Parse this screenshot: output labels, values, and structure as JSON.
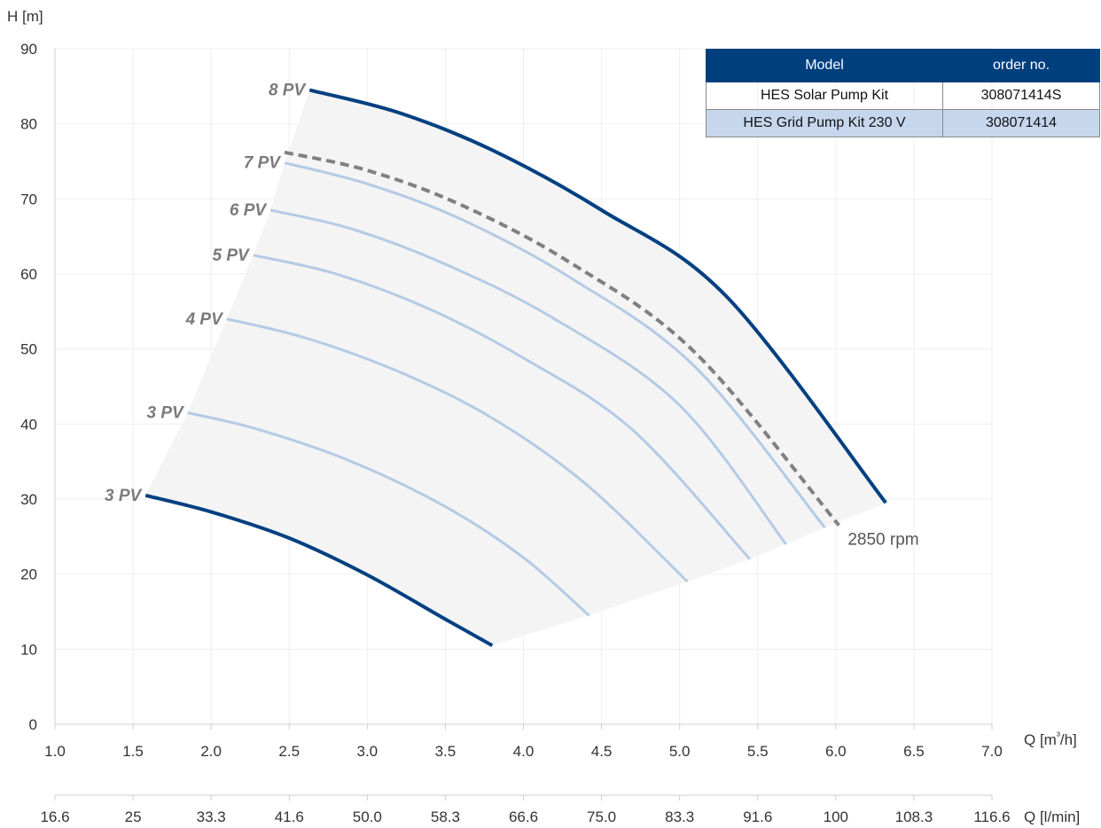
{
  "chart_data": {
    "type": "line",
    "title": "",
    "ylabel": "H [m]",
    "xlabel": "Q [m³/h]",
    "xlabel_secondary": "Q [l/min]",
    "xlim": [
      1.0,
      7.0
    ],
    "ylim": [
      0,
      90
    ],
    "x_ticks": [
      "1.0",
      "1.5",
      "2.0",
      "2.5",
      "3.0",
      "3.5",
      "4.0",
      "4.5",
      "5.0",
      "5.5",
      "6.0",
      "6.5",
      "7.0"
    ],
    "y_ticks": [
      "0",
      "10",
      "20",
      "30",
      "40",
      "50",
      "60",
      "70",
      "80",
      "90"
    ],
    "x_secondary_ticks": [
      "16.6",
      "25",
      "33.3",
      "41.6",
      "50.0",
      "58.3",
      "66.6",
      "75.0",
      "83.3",
      "91.6",
      "100",
      "108.3",
      "116.6"
    ],
    "grid": true,
    "colors": {
      "boundary": "#004080",
      "intermediate": "#b4cbe5",
      "rated": "#808080",
      "area": "#f4f4f4"
    },
    "annotation": "2850 rpm",
    "series": [
      {
        "name": "3 PV",
        "style": "boundary",
        "x": [
          1.58,
          2.0,
          2.5,
          3.0,
          3.5,
          3.8
        ],
        "y": [
          30.5,
          28.3,
          24.8,
          19.9,
          14.0,
          10.5
        ]
      },
      {
        "name": "3 PV",
        "style": "intermediate",
        "x": [
          1.85,
          2.3,
          2.9,
          3.5,
          4.0,
          4.42
        ],
        "y": [
          41.5,
          39.3,
          35.0,
          29.0,
          22.2,
          14.5
        ]
      },
      {
        "name": "4 PV",
        "style": "intermediate",
        "x": [
          2.1,
          2.6,
          3.2,
          3.8,
          4.4,
          5.05
        ],
        "y": [
          54.0,
          51.5,
          47.0,
          40.8,
          32.0,
          19.0
        ]
      },
      {
        "name": "5 PV",
        "style": "intermediate",
        "x": [
          2.27,
          2.8,
          3.4,
          4.0,
          4.7,
          5.45
        ],
        "y": [
          62.5,
          60.0,
          55.3,
          48.8,
          39.2,
          22.0
        ]
      },
      {
        "name": "6 PV",
        "style": "intermediate",
        "x": [
          2.38,
          2.9,
          3.5,
          4.2,
          5.0,
          5.68
        ],
        "y": [
          68.5,
          66.0,
          61.3,
          54.0,
          42.5,
          24.0
        ]
      },
      {
        "name": "7 PV",
        "style": "intermediate",
        "x": [
          2.47,
          3.0,
          3.6,
          4.3,
          5.1,
          5.93
        ],
        "y": [
          74.8,
          72.0,
          67.3,
          59.5,
          47.6,
          26.2
        ]
      },
      {
        "name": "",
        "style": "rated",
        "x": [
          2.47,
          3.0,
          3.6,
          4.3,
          5.1,
          6.02
        ],
        "y": [
          76.2,
          73.8,
          69.2,
          61.5,
          49.5,
          26.5
        ]
      },
      {
        "name": "8 PV",
        "style": "boundary",
        "x": [
          2.63,
          3.2,
          3.8,
          4.5,
          5.3,
          6.32
        ],
        "y": [
          84.5,
          81.5,
          76.5,
          68.5,
          57.0,
          29.5
        ]
      }
    ]
  },
  "table": {
    "headers": [
      "Model",
      "order no."
    ],
    "rows": [
      [
        "HES Solar Pump Kit",
        "308071414S"
      ],
      [
        "HES Grid Pump Kit 230 V",
        "308071414"
      ]
    ]
  }
}
